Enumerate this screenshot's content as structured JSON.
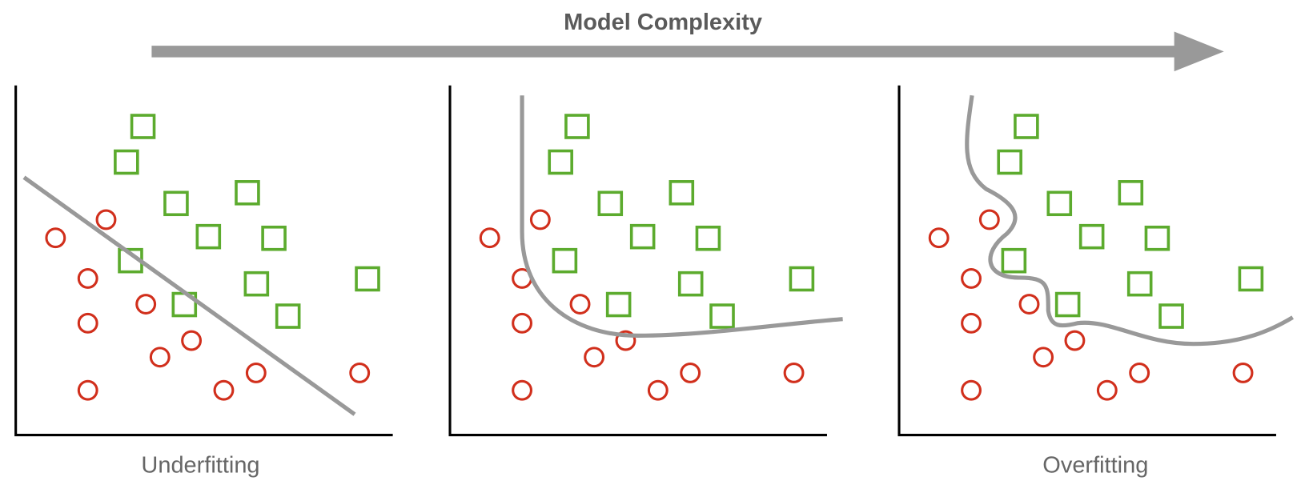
{
  "title": "Model Complexity",
  "panels": [
    {
      "label": "Underfitting"
    },
    {
      "label": ""
    },
    {
      "label": "Overfitting"
    }
  ]
}
